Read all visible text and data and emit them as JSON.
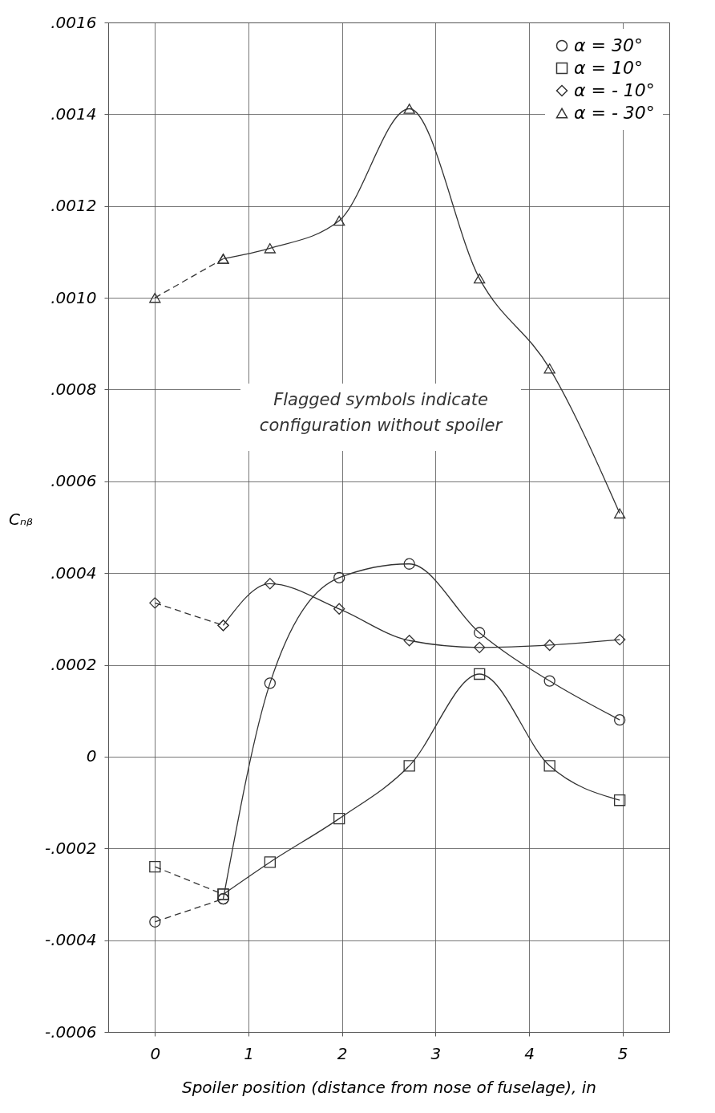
{
  "chart_data": {
    "type": "line",
    "xlabel": "Spoiler position (distance from nose of fuselage), in",
    "ylabel": "Cₙᵦ",
    "xlim": [
      -0.5,
      5.5
    ],
    "xticks": [
      0,
      1,
      2,
      3,
      4,
      5
    ],
    "ylim": [
      -0.0006,
      0.0016
    ],
    "yticks": [
      {
        "value": -0.0006,
        "label": "-.0006"
      },
      {
        "value": -0.0004,
        "label": "-.0004"
      },
      {
        "value": -0.0002,
        "label": "-.0002"
      },
      0,
      {
        "value": 0.0002,
        "label": ".0002"
      },
      {
        "value": 0.0004,
        "label": ".0004"
      },
      {
        "value": 0.0006,
        "label": ".0006"
      },
      {
        "value": 0.0008,
        "label": ".0008"
      },
      {
        "value": 0.001,
        "label": ".0010"
      },
      {
        "value": 0.0012,
        "label": ".0012"
      },
      {
        "value": 0.0014,
        "label": ".0014"
      },
      {
        "value": 0.0016,
        "label": ".0016"
      }
    ],
    "grid": true,
    "legend": "top right",
    "annotations": [
      "Flagged symbols indicate configuration without spoiler"
    ],
    "series": [
      {
        "name": "α = 30°",
        "color": "#333333",
        "marker": "circle",
        "line_style": "solid",
        "x": [
          0.73,
          1.23,
          1.97,
          2.72,
          3.47,
          4.22,
          4.97
        ],
        "values": [
          -0.00031,
          0.00016,
          0.00039,
          0.00042,
          0.00027,
          0.000165,
          8e-05
        ]
      },
      {
        "name": "α = 10°",
        "color": "#333333",
        "marker": "square",
        "line_style": "solid",
        "x": [
          0.73,
          1.23,
          1.97,
          2.72,
          3.47,
          4.22,
          4.97
        ],
        "values": [
          -0.0003,
          -0.00023,
          -0.000135,
          -2e-05,
          0.00018,
          -2e-05,
          -9.5e-05
        ]
      },
      {
        "name": "α = - 10°",
        "color": "#333333",
        "marker": "diamond",
        "line_style": "solid",
        "x": [
          0.73,
          1.23,
          1.97,
          2.72,
          3.47,
          4.22,
          4.97
        ],
        "values": [
          0.000286,
          0.000377,
          0.000322,
          0.000253,
          0.000238,
          0.000243,
          0.000255
        ]
      },
      {
        "name": "α = - 30°",
        "color": "#333333",
        "marker": "triangle",
        "line_style": "solid",
        "x": [
          0.73,
          1.23,
          1.97,
          2.72,
          3.47,
          4.22,
          4.97
        ],
        "values": [
          0.001085,
          0.001108,
          0.001168,
          0.001412,
          0.001042,
          0.000846,
          0.00053
        ]
      },
      {
        "color": "#333333",
        "marker": "circle",
        "line_style": "dashed",
        "x": [
          0,
          0.73
        ],
        "values": [
          -0.00036,
          -0.00031
        ]
      },
      {
        "color": "#333333",
        "marker": "square",
        "line_style": "dashed",
        "x": [
          0,
          0.73
        ],
        "values": [
          -0.00024,
          -0.0003
        ]
      },
      {
        "color": "#333333",
        "marker": "diamond",
        "line_style": "dashed",
        "x": [
          0,
          0.73
        ],
        "values": [
          0.000335,
          0.000286
        ]
      },
      {
        "color": "#333333",
        "marker": "triangle",
        "line_style": "dashed",
        "x": [
          0,
          0.73
        ],
        "values": [
          0.001,
          0.001085
        ]
      }
    ]
  }
}
